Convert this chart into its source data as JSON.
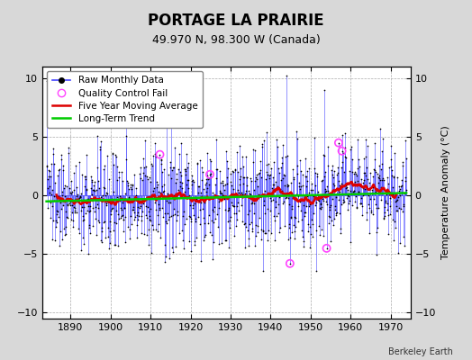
{
  "title": "PORTAGE LA PRAIRIE",
  "subtitle": "49.970 N, 98.300 W (Canada)",
  "ylabel": "Temperature Anomaly (°C)",
  "credit": "Berkeley Earth",
  "xlim": [
    1883,
    1975
  ],
  "ylim": [
    -10.5,
    11
  ],
  "yticks": [
    -10,
    -5,
    0,
    5,
    10
  ],
  "xticks": [
    1890,
    1900,
    1910,
    1920,
    1930,
    1940,
    1950,
    1960,
    1970
  ],
  "bg_color": "#d8d8d8",
  "plot_bg_color": "#ffffff",
  "bar_color": "#4444ff",
  "dot_color": "#000000",
  "ma_color": "#dd0000",
  "trend_color": "#00cc00",
  "qc_color": "#ff44ff",
  "seed": 137,
  "n_months": 1080,
  "start_year": 1884.0,
  "trend_slope": 0.008,
  "trend_intercept": -0.5,
  "ma_window": 60,
  "title_fontsize": 12,
  "subtitle_fontsize": 9,
  "label_fontsize": 8,
  "tick_fontsize": 8,
  "legend_fontsize": 7.5,
  "qc_indices": [
    340,
    490,
    730,
    840,
    876,
    886
  ]
}
